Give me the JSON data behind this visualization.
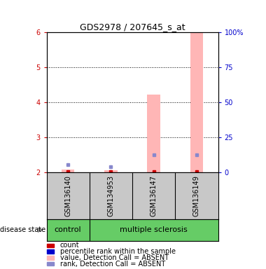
{
  "title": "GDS2978 / 207645_s_at",
  "samples": [
    "GSM136140",
    "GSM134953",
    "GSM136147",
    "GSM136149"
  ],
  "groups": [
    "control",
    "multiple sclerosis",
    "multiple sclerosis",
    "multiple sclerosis"
  ],
  "ylim": [
    2.0,
    6.0
  ],
  "yticks_left": [
    2,
    3,
    4,
    5,
    6
  ],
  "yticks_right": [
    0,
    25,
    50,
    75,
    100
  ],
  "y_right_labels": [
    "0",
    "25",
    "50",
    "75",
    "100%"
  ],
  "bar_width": 0.3,
  "pink_bar_color": "#FFB6B6",
  "blue_square_color": "#8888CC",
  "red_square_color": "#CC0000",
  "values_absent": [
    2.07,
    2.06,
    4.22,
    6.0
  ],
  "ranks_absent": [
    2.22,
    2.16,
    2.5,
    2.5
  ],
  "label_fontsize": 7,
  "tick_fontsize": 7,
  "legend_fontsize": 7,
  "left_tick_color": "#CC0000",
  "right_tick_color": "#0000CC",
  "disease_state_label": "disease state",
  "group_label_control": "control",
  "group_label_ms": "multiple sclerosis",
  "legend_entries": [
    "count",
    "percentile rank within the sample",
    "value, Detection Call = ABSENT",
    "rank, Detection Call = ABSENT"
  ],
  "legend_colors": [
    "#CC0000",
    "#0000CC",
    "#FFB6B6",
    "#8888CC"
  ]
}
